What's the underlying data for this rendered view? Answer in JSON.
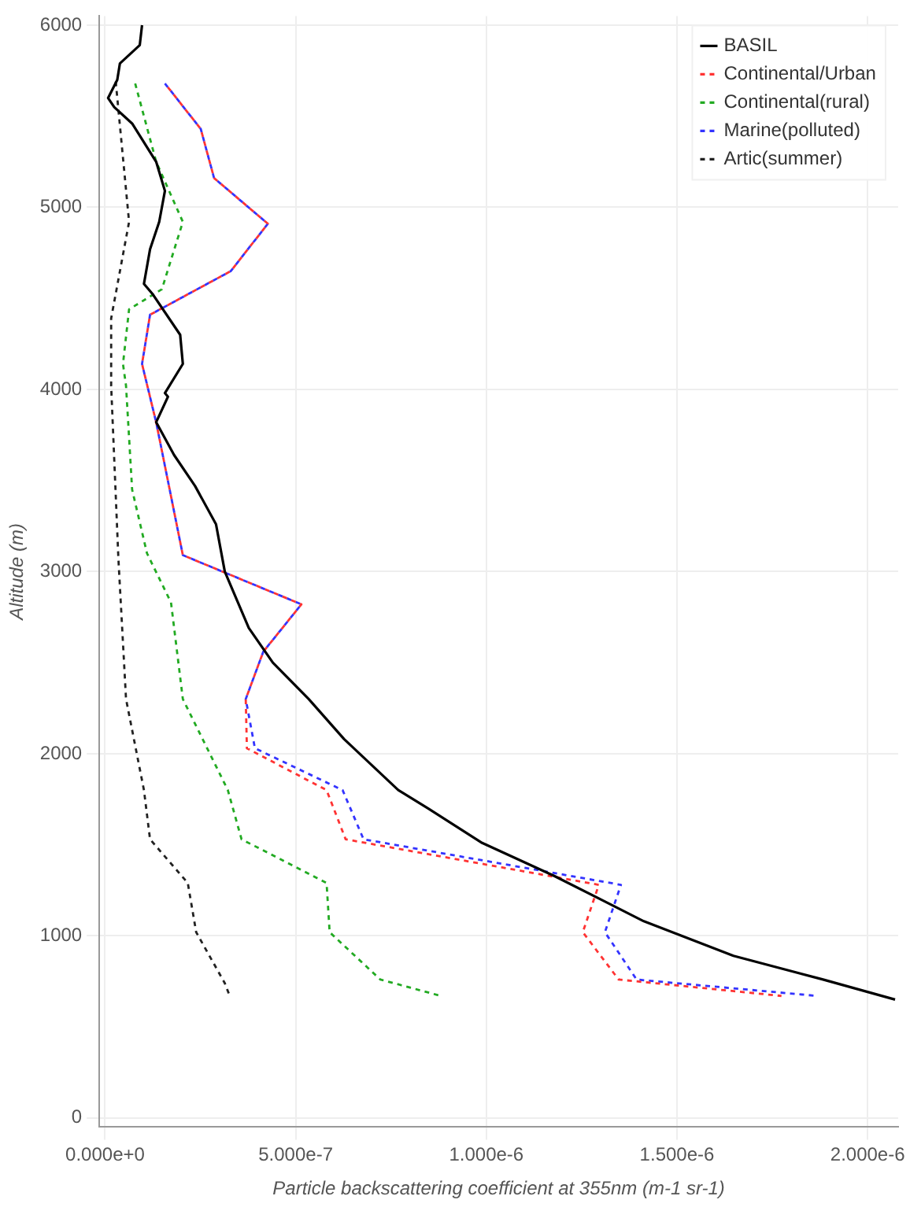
{
  "chart_data": {
    "type": "line",
    "xlabel": "Particle backscattering coefficient at 355nm (m-1 sr-1)",
    "ylabel": "Altitude (m)",
    "xlim": [
      -1.5e-08,
      2.08e-06
    ],
    "xticks": [
      {
        "value": 0,
        "label": "0.000e+0"
      },
      {
        "value": 5e-07,
        "label": "5.000e-7"
      },
      {
        "value": 1e-06,
        "label": "1.000e-6"
      },
      {
        "value": 1.5e-06,
        "label": "1.500e-6"
      },
      {
        "value": 2e-06,
        "label": "2.000e-6"
      }
    ],
    "ylim": [
      -50,
      6050
    ],
    "yticks": [
      0,
      1000,
      2000,
      3000,
      4000,
      5000,
      6000
    ],
    "grid": true,
    "legend": "top right",
    "marker": "none",
    "series": [
      {
        "name": "BASIL",
        "color": "#000000",
        "line_style": "solid",
        "x": [
          9.7e-08,
          9.1e-08,
          3.9e-08,
          3.2e-08,
          8e-09,
          2.4e-08,
          7.1e-08,
          1.34e-07,
          1.57e-07,
          1.42e-07,
          1.18e-07,
          1.02e-07,
          1.26e-07,
          1.97e-07,
          2.04e-07,
          1.57e-07,
          1.65e-07,
          1.34e-07,
          1.81e-07,
          2.36e-07,
          2.91e-07,
          3.14e-07,
          3.77e-07,
          4.4e-07,
          5.34e-07,
          6.27e-07,
          7.69e-07,
          8.47e-07,
          9.89e-07,
          1.177e-06,
          1.413e-06,
          1.648e-06,
          1.883e-06,
          2.072e-06
        ],
        "values": [
          6000,
          5890,
          5790,
          5700,
          5600,
          5550,
          5460,
          5250,
          5090,
          4920,
          4770,
          4580,
          4520,
          4300,
          4140,
          3980,
          3960,
          3820,
          3640,
          3470,
          3260,
          3000,
          2690,
          2500,
          2300,
          2080,
          1800,
          1700,
          1510,
          1330,
          1080,
          890,
          760,
          650
        ]
      },
      {
        "name": "Continental/Urban",
        "color": "#ff3333",
        "line_style": "dotted",
        "x": [
          1.57e-07,
          2.51e-07,
          2.86e-07,
          4.27e-07,
          3.3e-07,
          1.18e-07,
          9.7e-08,
          1.34e-07,
          2.04e-07,
          5.15e-07,
          4.15e-07,
          3.69e-07,
          3.72e-07,
          5.81e-07,
          6.31e-07,
          1.295e-06,
          1.253e-06,
          1.347e-06,
          1.774e-06
        ],
        "values": [
          5680,
          5430,
          5160,
          4910,
          4650,
          4410,
          4140,
          3820,
          3090,
          2820,
          2560,
          2300,
          2030,
          1800,
          1530,
          1280,
          1020,
          760,
          670
        ]
      },
      {
        "name": "Continental(rural)",
        "color": "#22aa22",
        "line_style": "dotted",
        "x": [
          7.9e-08,
          1.34e-07,
          2.04e-07,
          1.49e-07,
          6.3e-08,
          4.7e-08,
          5.5e-08,
          7.1e-08,
          1.1e-07,
          1.73e-07,
          2.04e-07,
          3.22e-07,
          3.58e-07,
          5.81e-07,
          5.89e-07,
          7.22e-07,
          8.81e-07
        ],
        "values": [
          5680,
          5250,
          4920,
          4550,
          4440,
          4140,
          4020,
          3450,
          3100,
          2830,
          2300,
          1800,
          1530,
          1290,
          1020,
          760,
          670
        ]
      },
      {
        "name": "Marine(polluted)",
        "color": "#3333ff",
        "line_style": "dotted",
        "x": [
          1.57e-07,
          2.51e-07,
          2.86e-07,
          4.27e-07,
          3.3e-07,
          1.18e-07,
          9.7e-08,
          1.34e-07,
          2.04e-07,
          5.15e-07,
          4.15e-07,
          3.69e-07,
          3.93e-07,
          6.23e-07,
          6.78e-07,
          1.353e-06,
          1.311e-06,
          1.394e-06,
          1.868e-06
        ],
        "values": [
          5680,
          5430,
          5160,
          4910,
          4650,
          4410,
          4140,
          3820,
          3090,
          2820,
          2560,
          2300,
          2030,
          1800,
          1530,
          1280,
          1020,
          760,
          670
        ]
      },
      {
        "name": "Artic(summer)",
        "color": "#222222",
        "line_style": "dotted",
        "x": [
          2.8e-08,
          6.3e-08,
          1.6e-08,
          1.6e-08,
          3.5e-08,
          5.5e-08,
          1.02e-07,
          1.18e-07,
          2.17e-07,
          2.39e-07,
          3.14e-07,
          3.27e-07
        ],
        "values": [
          5690,
          4920,
          4390,
          4020,
          3070,
          2300,
          1800,
          1530,
          1290,
          1020,
          740,
          670
        ]
      }
    ]
  }
}
